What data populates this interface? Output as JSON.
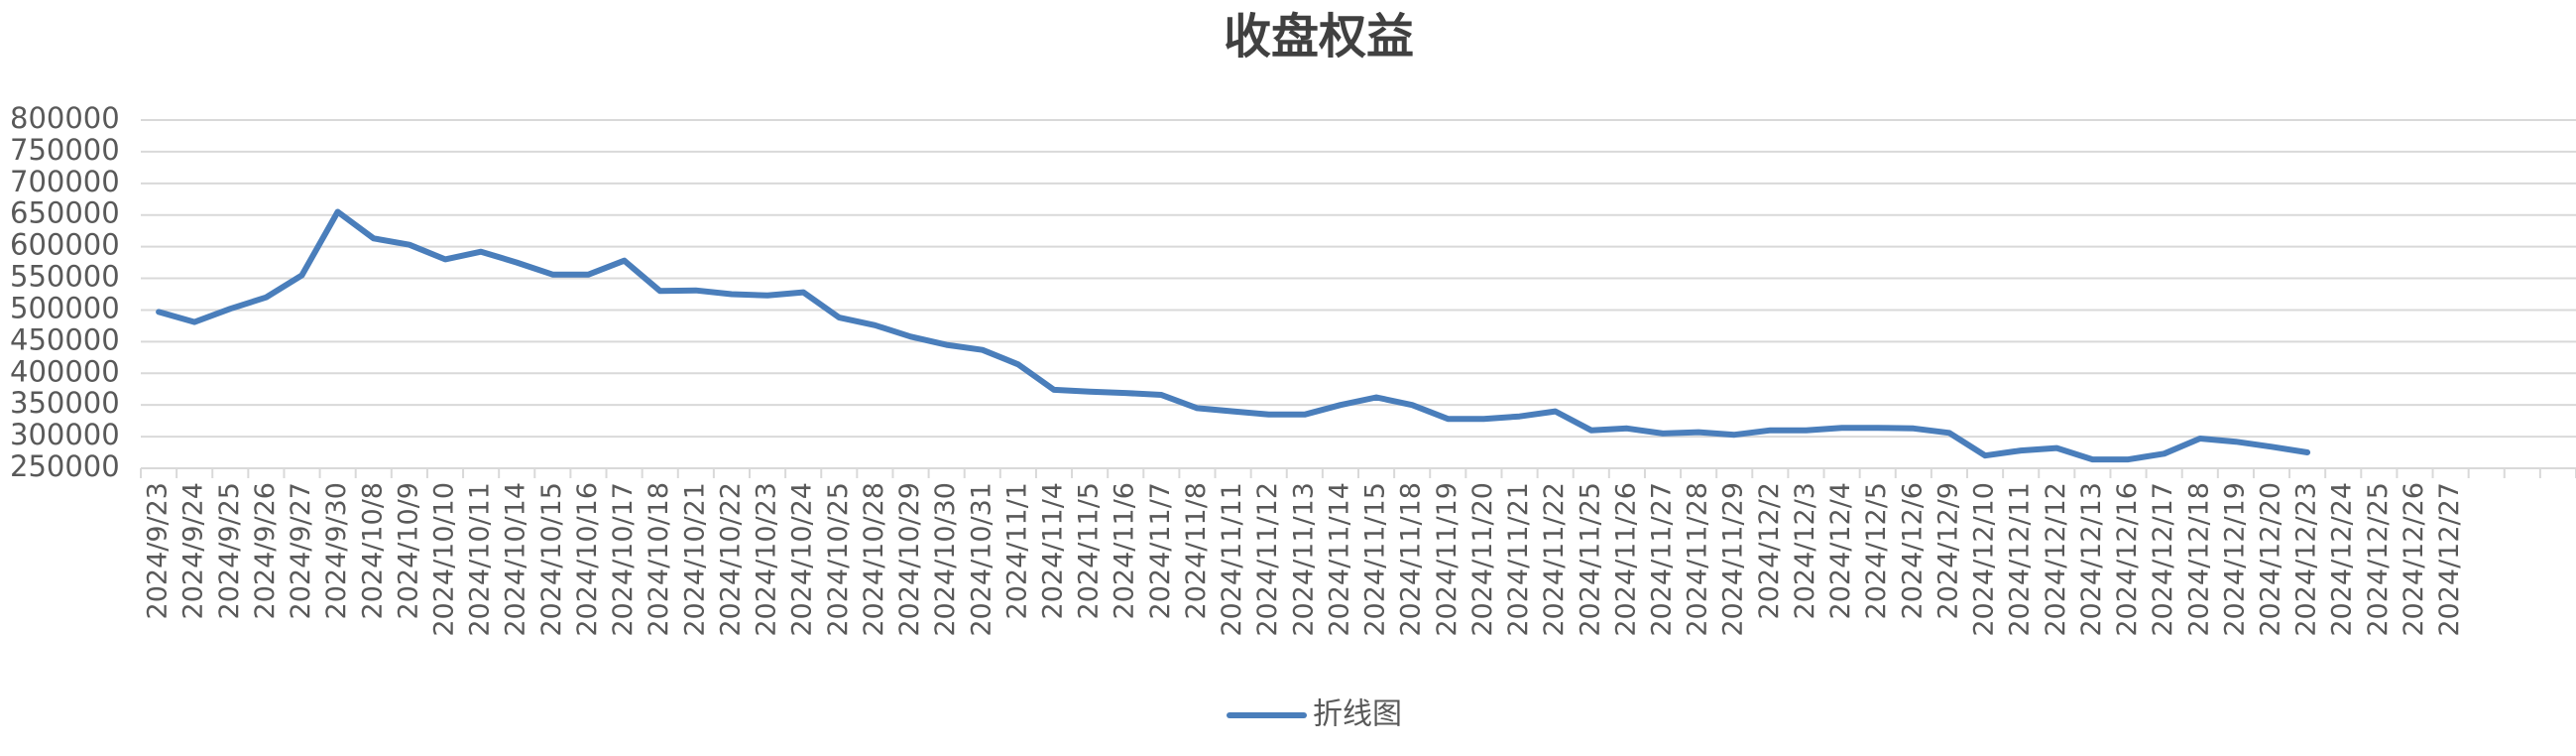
{
  "chart_data": {
    "type": "line",
    "title": "收盘权益",
    "categories": [
      "2024/9/23",
      "2024/9/24",
      "2024/9/25",
      "2024/9/26",
      "2024/9/27",
      "2024/9/30",
      "2024/10/8",
      "2024/10/9",
      "2024/10/10",
      "2024/10/11",
      "2024/10/14",
      "2024/10/15",
      "2024/10/16",
      "2024/10/17",
      "2024/10/18",
      "2024/10/21",
      "2024/10/22",
      "2024/10/23",
      "2024/10/24",
      "2024/10/25",
      "2024/10/28",
      "2024/10/29",
      "2024/10/30",
      "2024/10/31",
      "2024/11/1",
      "2024/11/4",
      "2024/11/5",
      "2024/11/6",
      "2024/11/7",
      "2024/11/8",
      "2024/11/11",
      "2024/11/12",
      "2024/11/13",
      "2024/11/14",
      "2024/11/15",
      "2024/11/18",
      "2024/11/19",
      "2024/11/20",
      "2024/11/21",
      "2024/11/22",
      "2024/11/25",
      "2024/11/26",
      "2024/11/27",
      "2024/11/28",
      "2024/11/29",
      "2024/12/2",
      "2024/12/3",
      "2024/12/4",
      "2024/12/5",
      "2024/12/6",
      "2024/12/9",
      "2024/12/10",
      "2024/12/11",
      "2024/12/12",
      "2024/12/13",
      "2024/12/16",
      "2024/12/17",
      "2024/12/18",
      "2024/12/19",
      "2024/12/20",
      "2024/12/23",
      "2024/12/24",
      "2024/12/25",
      "2024/12/26",
      "2024/12/27",
      null,
      null,
      null
    ],
    "series": [
      {
        "name": "折线图",
        "color": "#4a7ebb",
        "values": [
          497000,
          481000,
          502000,
          520000,
          555000,
          655000,
          613000,
          603000,
          580000,
          592000,
          575000,
          556000,
          556000,
          578000,
          530000,
          531000,
          525000,
          523000,
          528000,
          488000,
          476000,
          458000,
          445000,
          437000,
          414000,
          374000,
          371000,
          369000,
          366000,
          345000,
          340000,
          335000,
          335000,
          350000,
          362000,
          350000,
          328000,
          328000,
          332000,
          340000,
          310000,
          313000,
          305000,
          307000,
          303000,
          310000,
          310000,
          314000,
          314000,
          313000,
          306000,
          270000,
          278000,
          282000,
          264000,
          264000,
          273000,
          297000,
          292000,
          284000,
          275000,
          null,
          null,
          null,
          null,
          null,
          null,
          null
        ]
      }
    ],
    "ylim": [
      250000,
      800000
    ],
    "yticks": [
      250000,
      300000,
      350000,
      400000,
      450000,
      500000,
      550000,
      600000,
      650000,
      700000,
      750000,
      800000
    ],
    "grid": true,
    "legend": "bottom"
  }
}
